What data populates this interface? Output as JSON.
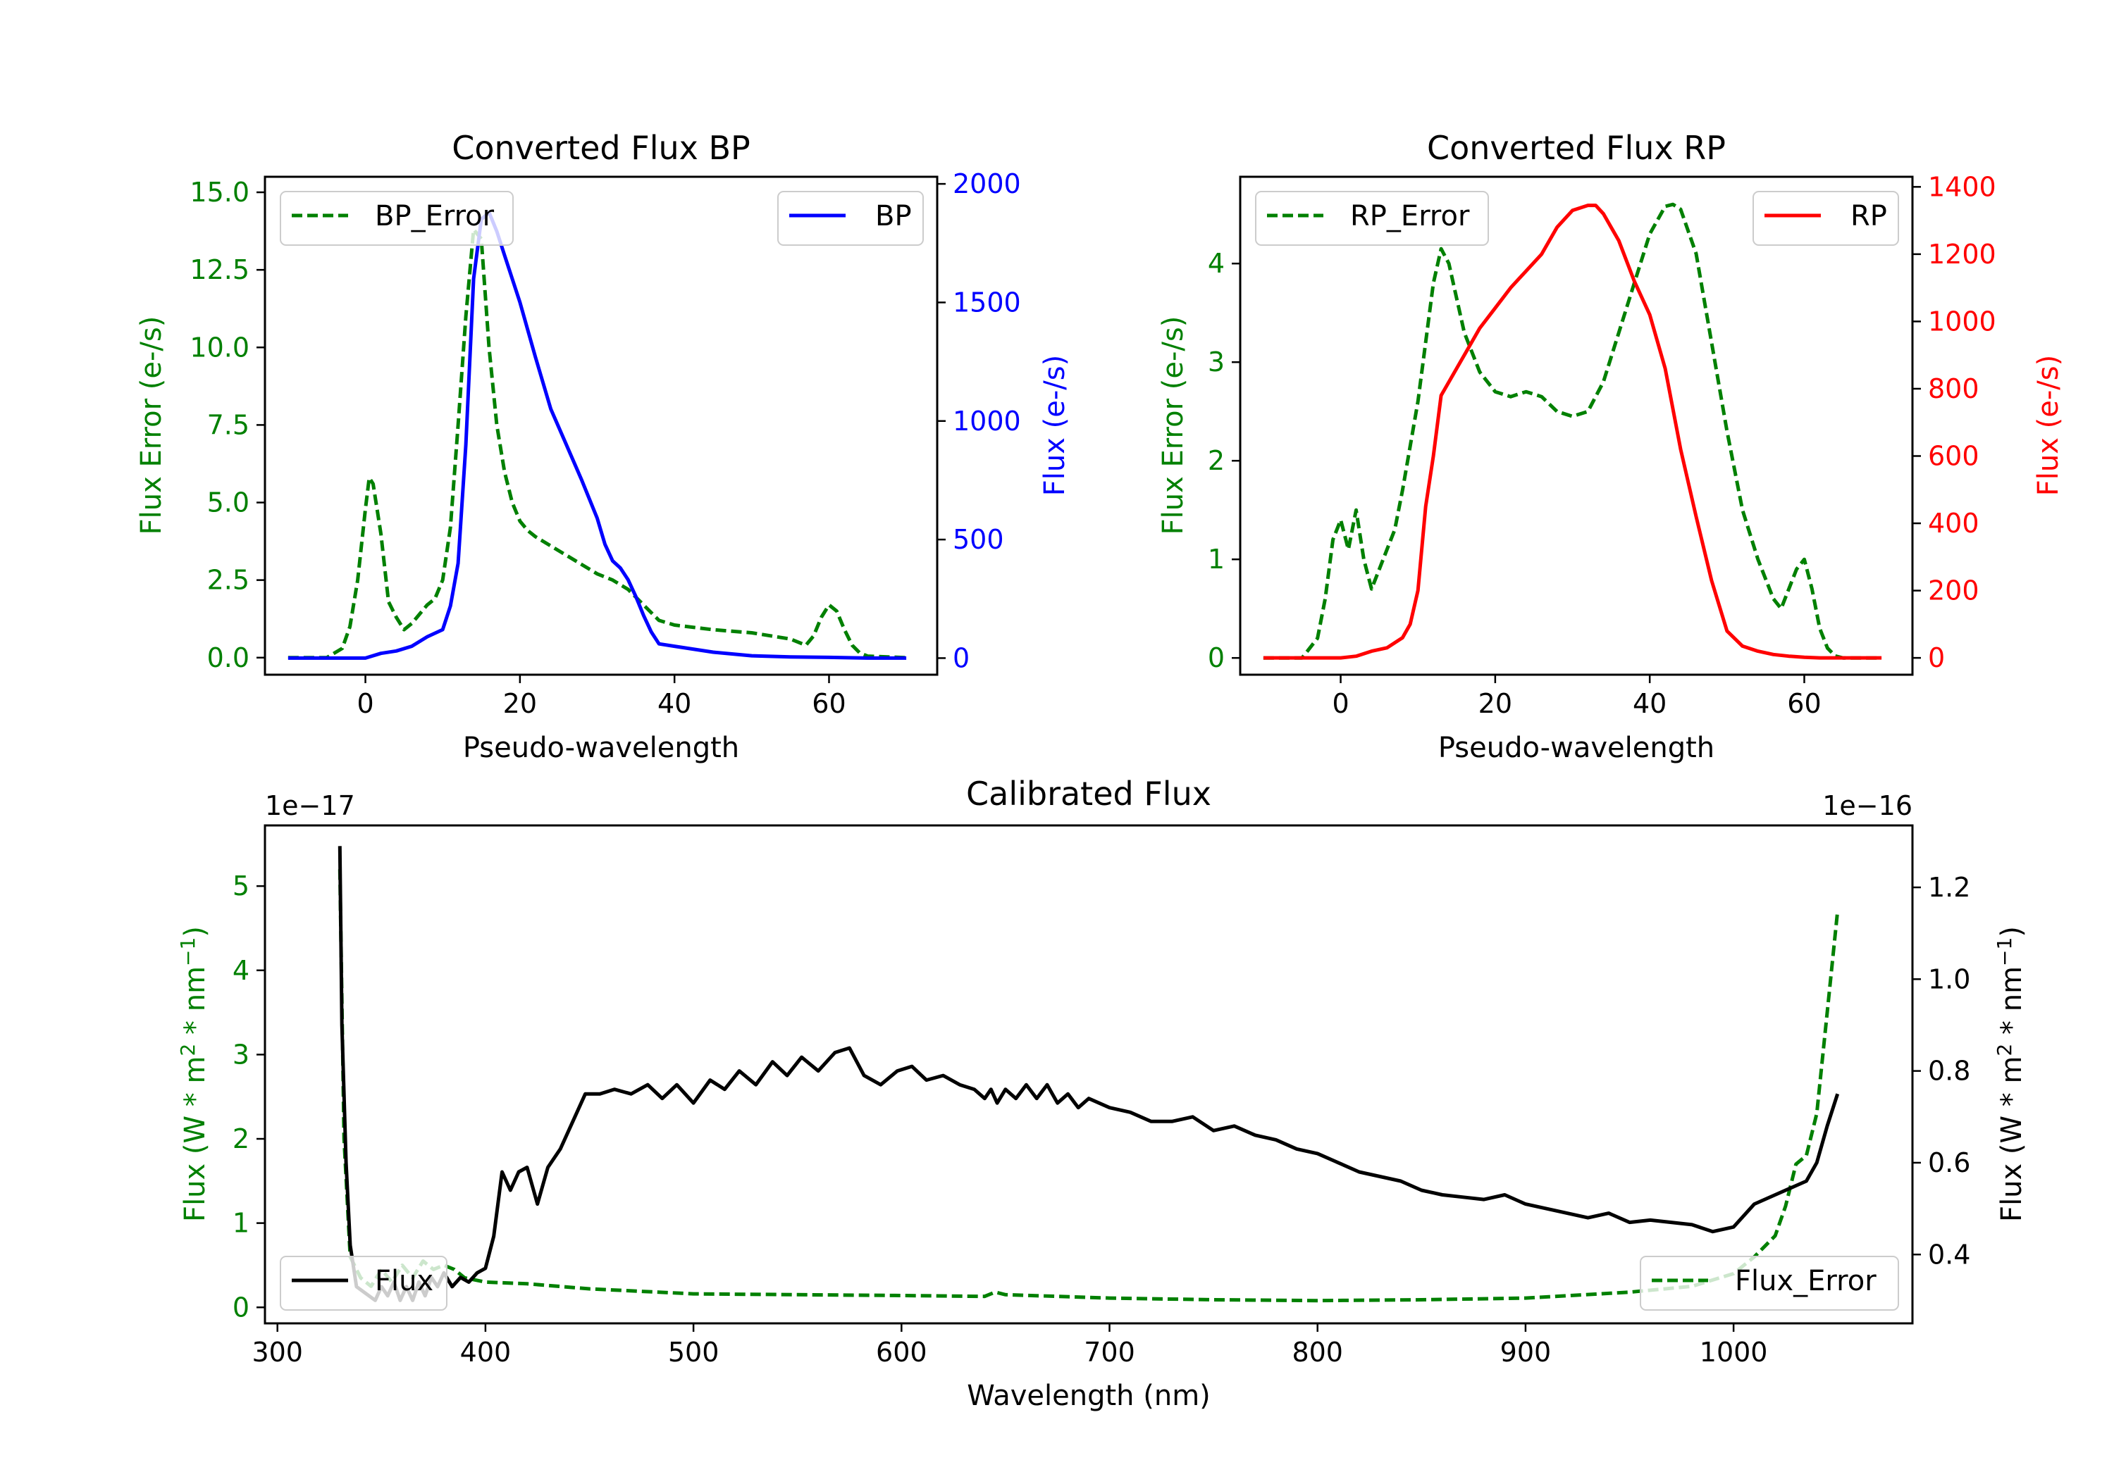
{
  "colors": {
    "bp": "#0000ff",
    "rp": "#ff0000",
    "error": "#008000",
    "flux": "#000000"
  },
  "chart_data": [
    {
      "id": "bp",
      "type": "line",
      "title": "Converted Flux BP",
      "xlabel": "Pseudo-wavelength",
      "ylabel_left": "Flux Error (e-/s)",
      "ylabel_right": "Flux (e-/s)",
      "xlim": [
        -13,
        74
      ],
      "ylim_left": [
        -0.55,
        15.5
      ],
      "ylim_right": [
        -70,
        2030
      ],
      "xticks": [
        0,
        20,
        40,
        60
      ],
      "yticks_left": [
        {
          "v": 0.0,
          "label": "0.0"
        },
        {
          "v": 2.5,
          "label": "2.5"
        },
        {
          "v": 5.0,
          "label": "5.0"
        },
        {
          "v": 7.5,
          "label": "7.5"
        },
        {
          "v": 10.0,
          "label": "10.0"
        },
        {
          "v": 12.5,
          "label": "12.5"
        },
        {
          "v": 15.0,
          "label": "15.0"
        }
      ],
      "yticks_right": [
        {
          "v": 0,
          "label": "0"
        },
        {
          "v": 500,
          "label": "500"
        },
        {
          "v": 1000,
          "label": "1000"
        },
        {
          "v": 1500,
          "label": "1500"
        },
        {
          "v": 2000,
          "label": "2000"
        }
      ],
      "series": [
        {
          "name": "BP_Error",
          "axis": "left",
          "style": "dashed",
          "color": "#008000",
          "x": [
            -10,
            -5,
            -3,
            -2,
            -1,
            0,
            0.5,
            1,
            2,
            3,
            4,
            5,
            6,
            7,
            8,
            9,
            10,
            11,
            12,
            13,
            14,
            15,
            16,
            17,
            18,
            19,
            20,
            21,
            22,
            24,
            26,
            28,
            30,
            32,
            34,
            36,
            38,
            40,
            45,
            50,
            55,
            57,
            58,
            59,
            60,
            61,
            62,
            63,
            64,
            65,
            70
          ],
          "y": [
            0,
            0,
            0.3,
            1,
            2.5,
            4.8,
            5.8,
            5.6,
            4,
            1.8,
            1.3,
            0.9,
            1.1,
            1.4,
            1.7,
            1.9,
            2.5,
            4.2,
            7.5,
            11,
            13.8,
            13.5,
            10,
            7.5,
            6,
            5,
            4.4,
            4.1,
            3.9,
            3.6,
            3.3,
            3.0,
            2.7,
            2.5,
            2.2,
            1.7,
            1.2,
            1.05,
            0.9,
            0.8,
            0.6,
            0.4,
            0.7,
            1.3,
            1.7,
            1.5,
            0.9,
            0.4,
            0.15,
            0.05,
            0
          ]
        },
        {
          "name": "BP",
          "axis": "right",
          "style": "solid",
          "color": "#0000ff",
          "x": [
            -10,
            -5,
            0,
            2,
            4,
            6,
            8,
            10,
            11,
            12,
            13,
            14,
            15,
            16,
            17,
            18,
            20,
            22,
            24,
            26,
            28,
            30,
            31,
            32,
            33,
            34,
            35,
            36,
            37,
            38,
            40,
            45,
            50,
            55,
            60,
            65,
            70
          ],
          "y": [
            0,
            0,
            0,
            20,
            30,
            50,
            90,
            120,
            220,
            400,
            900,
            1600,
            1850,
            1880,
            1800,
            1700,
            1500,
            1270,
            1050,
            900,
            750,
            590,
            480,
            410,
            380,
            330,
            260,
            180,
            110,
            60,
            50,
            25,
            10,
            5,
            3,
            0,
            0
          ]
        }
      ],
      "legends": [
        {
          "label": "BP_Error",
          "position": "upper left"
        },
        {
          "label": "BP",
          "position": "upper right"
        }
      ]
    },
    {
      "id": "rp",
      "type": "line",
      "title": "Converted Flux RP",
      "xlabel": "Pseudo-wavelength",
      "ylabel_left": "Flux Error (e-/s)",
      "ylabel_right": "Flux (e-/s)",
      "xlim": [
        -13,
        74
      ],
      "ylim_left": [
        -0.17,
        4.88
      ],
      "ylim_right": [
        -50,
        1430
      ],
      "xticks": [
        0,
        20,
        40,
        60
      ],
      "yticks_left": [
        {
          "v": 0,
          "label": "0"
        },
        {
          "v": 1,
          "label": "1"
        },
        {
          "v": 2,
          "label": "2"
        },
        {
          "v": 3,
          "label": "3"
        },
        {
          "v": 4,
          "label": "4"
        }
      ],
      "yticks_right": [
        {
          "v": 0,
          "label": "0"
        },
        {
          "v": 200,
          "label": "200"
        },
        {
          "v": 400,
          "label": "400"
        },
        {
          "v": 600,
          "label": "600"
        },
        {
          "v": 800,
          "label": "800"
        },
        {
          "v": 1000,
          "label": "1000"
        },
        {
          "v": 1200,
          "label": "1200"
        },
        {
          "v": 1400,
          "label": "1400"
        }
      ],
      "series": [
        {
          "name": "RP_Error",
          "axis": "left",
          "style": "dashed",
          "color": "#008000",
          "x": [
            -10,
            -5,
            -3,
            -2,
            -1,
            0,
            1,
            2,
            3,
            4,
            5,
            6,
            7,
            8,
            10,
            12,
            13,
            14,
            16,
            18,
            20,
            22,
            24,
            26,
            28,
            30,
            32,
            34,
            36,
            38,
            40,
            42,
            43,
            44,
            46,
            48,
            50,
            52,
            54,
            56,
            57,
            58,
            59,
            60,
            61,
            62,
            63,
            64,
            65,
            70
          ],
          "y": [
            0,
            0,
            0.2,
            0.6,
            1.2,
            1.4,
            1.1,
            1.5,
            1.0,
            0.7,
            0.9,
            1.1,
            1.3,
            1.7,
            2.6,
            3.8,
            4.15,
            4.0,
            3.3,
            2.9,
            2.7,
            2.65,
            2.7,
            2.65,
            2.5,
            2.45,
            2.5,
            2.8,
            3.3,
            3.8,
            4.3,
            4.58,
            4.6,
            4.55,
            4.1,
            3.2,
            2.3,
            1.5,
            1.0,
            0.6,
            0.5,
            0.7,
            0.9,
            1.0,
            0.7,
            0.3,
            0.1,
            0.02,
            0,
            0
          ]
        },
        {
          "name": "RP",
          "axis": "right",
          "style": "solid",
          "color": "#ff0000",
          "x": [
            -10,
            -5,
            0,
            2,
            4,
            6,
            8,
            9,
            10,
            11,
            12,
            13,
            14,
            16,
            18,
            20,
            22,
            24,
            26,
            28,
            30,
            32,
            33,
            34,
            36,
            38,
            40,
            42,
            44,
            46,
            48,
            50,
            52,
            54,
            56,
            58,
            60,
            62,
            65,
            70
          ],
          "y": [
            0,
            0,
            0,
            5,
            20,
            30,
            60,
            100,
            200,
            450,
            600,
            780,
            820,
            900,
            980,
            1040,
            1100,
            1150,
            1200,
            1280,
            1330,
            1345,
            1345,
            1320,
            1240,
            1120,
            1020,
            860,
            620,
            420,
            230,
            80,
            35,
            20,
            10,
            5,
            2,
            0,
            0,
            0
          ]
        }
      ],
      "legends": [
        {
          "label": "RP_Error",
          "position": "upper left"
        },
        {
          "label": "RP",
          "position": "upper right"
        }
      ]
    },
    {
      "id": "cal",
      "type": "line",
      "title": "Calibrated Flux",
      "xlabel": "Wavelength (nm)",
      "ylabel_left_main": "Flux (W * m",
      "ylabel_left_sup1": "2",
      "ylabel_left_mid": " * nm",
      "ylabel_left_sup2": "−1",
      "ylabel_left_end": ")",
      "offset_left": "1e−17",
      "offset_right": "1e−16",
      "xlim": [
        294,
        1086
      ],
      "ylim_left": [
        -0.19,
        5.72
      ],
      "ylim_right": [
        0.25,
        1.335
      ],
      "xticks": [
        300,
        400,
        500,
        600,
        700,
        800,
        900,
        1000
      ],
      "yticks_left": [
        {
          "v": 0,
          "label": "0"
        },
        {
          "v": 1,
          "label": "1"
        },
        {
          "v": 2,
          "label": "2"
        },
        {
          "v": 3,
          "label": "3"
        },
        {
          "v": 4,
          "label": "4"
        },
        {
          "v": 5,
          "label": "5"
        }
      ],
      "yticks_right": [
        {
          "v": 0.4,
          "label": "0.4"
        },
        {
          "v": 0.6,
          "label": "0.6"
        },
        {
          "v": 0.8,
          "label": "0.8"
        },
        {
          "v": 1.0,
          "label": "1.0"
        },
        {
          "v": 1.2,
          "label": "1.2"
        }
      ],
      "series": [
        {
          "name": "Flux_Error",
          "axis": "left",
          "style": "dashed",
          "color": "#008000",
          "x": [
            330,
            332,
            335,
            340,
            345,
            350,
            355,
            360,
            365,
            370,
            375,
            380,
            385,
            390,
            400,
            420,
            450,
            500,
            550,
            600,
            640,
            645,
            650,
            700,
            750,
            800,
            850,
            900,
            950,
            980,
            1000,
            1010,
            1020,
            1025,
            1030,
            1035,
            1040,
            1045,
            1050
          ],
          "y": [
            5.2,
            2.0,
            0.6,
            0.35,
            0.25,
            0.45,
            0.3,
            0.5,
            0.35,
            0.55,
            0.45,
            0.5,
            0.45,
            0.35,
            0.3,
            0.28,
            0.22,
            0.16,
            0.15,
            0.14,
            0.13,
            0.18,
            0.15,
            0.11,
            0.09,
            0.08,
            0.09,
            0.11,
            0.18,
            0.25,
            0.4,
            0.6,
            0.85,
            1.2,
            1.7,
            1.8,
            2.3,
            3.5,
            4.7
          ]
        },
        {
          "name": "Flux",
          "axis": "right",
          "style": "solid",
          "color": "#000000",
          "x": [
            330,
            331,
            333,
            335,
            338,
            341,
            344,
            347,
            350,
            353,
            356,
            359,
            362,
            365,
            368,
            371,
            374,
            377,
            380,
            384,
            388,
            392,
            396,
            400,
            404,
            408,
            412,
            416,
            420,
            425,
            430,
            436,
            442,
            448,
            455,
            462,
            470,
            478,
            485,
            492,
            500,
            508,
            515,
            522,
            530,
            538,
            545,
            552,
            560,
            568,
            575,
            582,
            590,
            598,
            605,
            612,
            620,
            628,
            635,
            640,
            643,
            646,
            650,
            655,
            660,
            665,
            670,
            675,
            680,
            685,
            690,
            700,
            710,
            720,
            730,
            740,
            750,
            760,
            770,
            780,
            790,
            800,
            810,
            820,
            830,
            840,
            850,
            860,
            870,
            880,
            890,
            900,
            910,
            920,
            930,
            940,
            950,
            960,
            970,
            980,
            990,
            1000,
            1010,
            1020,
            1030,
            1035,
            1040,
            1045,
            1050
          ],
          "y": [
            1.29,
            0.9,
            0.6,
            0.42,
            0.33,
            0.32,
            0.31,
            0.3,
            0.33,
            0.31,
            0.34,
            0.3,
            0.33,
            0.3,
            0.34,
            0.31,
            0.35,
            0.33,
            0.36,
            0.33,
            0.35,
            0.34,
            0.36,
            0.37,
            0.44,
            0.58,
            0.54,
            0.58,
            0.59,
            0.51,
            0.59,
            0.63,
            0.69,
            0.75,
            0.75,
            0.76,
            0.75,
            0.77,
            0.74,
            0.77,
            0.73,
            0.78,
            0.76,
            0.8,
            0.77,
            0.82,
            0.79,
            0.83,
            0.8,
            0.84,
            0.85,
            0.79,
            0.77,
            0.8,
            0.81,
            0.78,
            0.79,
            0.77,
            0.76,
            0.74,
            0.76,
            0.73,
            0.76,
            0.74,
            0.77,
            0.74,
            0.77,
            0.73,
            0.75,
            0.72,
            0.74,
            0.72,
            0.71,
            0.69,
            0.69,
            0.7,
            0.67,
            0.68,
            0.66,
            0.65,
            0.63,
            0.62,
            0.6,
            0.58,
            0.57,
            0.56,
            0.54,
            0.53,
            0.525,
            0.52,
            0.53,
            0.51,
            0.5,
            0.49,
            0.48,
            0.49,
            0.47,
            0.475,
            0.47,
            0.465,
            0.45,
            0.46,
            0.51,
            0.53,
            0.55,
            0.56,
            0.6,
            0.68,
            0.75
          ]
        }
      ],
      "legends": [
        {
          "label": "Flux",
          "position": "lower left"
        },
        {
          "label": "Flux_Error",
          "position": "lower right"
        }
      ]
    }
  ]
}
